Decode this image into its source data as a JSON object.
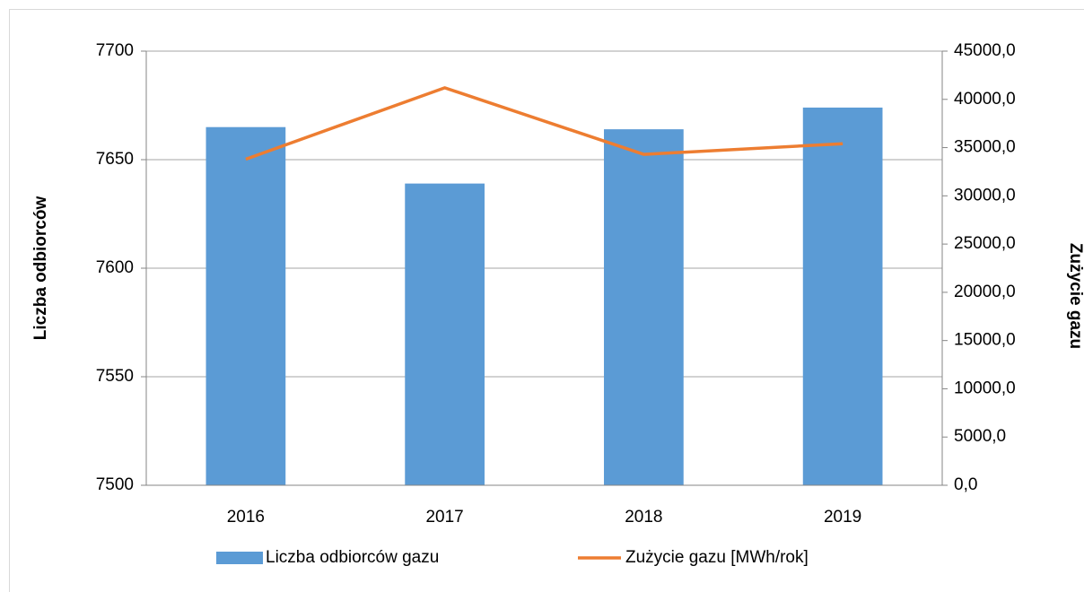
{
  "chart_data": {
    "type": "bar-line",
    "categories": [
      "2016",
      "2017",
      "2018",
      "2019"
    ],
    "series": [
      {
        "name": "Liczba odbiorców gazu",
        "type": "bar",
        "axis": "y",
        "color": "#5b9bd5",
        "values": [
          7665,
          7639,
          7664,
          7674
        ]
      },
      {
        "name": "Zużycie gazu [MWh/rok]",
        "type": "line",
        "axis": "y2",
        "color": "#ed7d31",
        "values": [
          33800,
          41200,
          34300,
          35400
        ]
      }
    ],
    "ylabel": "Liczba odbiorców",
    "y2label": "Zużycie gazu",
    "ylim": [
      7500,
      7700
    ],
    "yticks": [
      7500,
      7550,
      7600,
      7650,
      7700
    ],
    "y2lim": [
      0,
      45000
    ],
    "y2ticks": [
      {
        "value": 0,
        "label": "0,0"
      },
      {
        "value": 5000,
        "label": "5000,0"
      },
      {
        "value": 10000,
        "label": "10000,0"
      },
      {
        "value": 15000,
        "label": "15000,0"
      },
      {
        "value": 20000,
        "label": "20000,0"
      },
      {
        "value": 25000,
        "label": "25000,0"
      },
      {
        "value": 30000,
        "label": "30000,0"
      },
      {
        "value": 35000,
        "label": "35000,0"
      },
      {
        "value": 40000,
        "label": "40000,0"
      },
      {
        "value": 45000,
        "label": "45000,0"
      }
    ],
    "grid": true,
    "legend": "bottom"
  }
}
